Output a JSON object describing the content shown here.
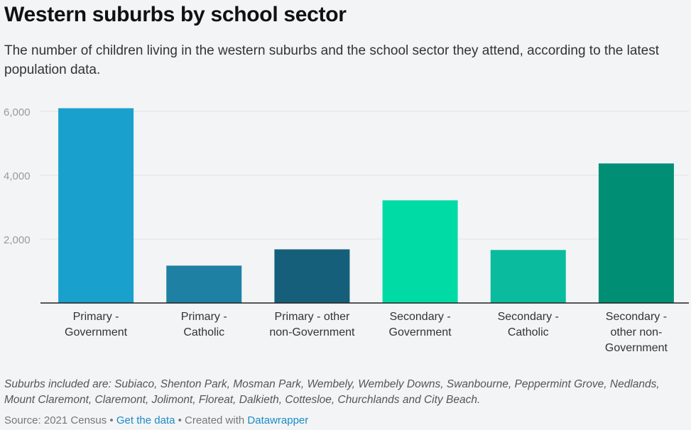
{
  "title": "Western suburbs by school sector",
  "subtitle": "The number of children living in the western suburbs and the school sector they attend, according to the latest population data.",
  "notes": "Suburbs included are: Subiaco, Shenton Park, Mosman Park, Wembely, Wembely Downs, Swanbourne, Peppermint Grove, Nedlands, Mount Claremont, Claremont, Jolimont, Floreat, Dalkieth, Cottesloe, Churchlands and City Beach.",
  "footer": {
    "source": "Source: 2021 Census",
    "sep1": " • ",
    "get_data": "Get the data",
    "sep2": " • Created with ",
    "datawrapper": "Datawrapper"
  },
  "chart_data": {
    "type": "bar",
    "title": "Western suburbs by school sector",
    "xlabel": "",
    "ylabel": "",
    "ylim": [
      0,
      6000
    ],
    "yticks": [
      2000,
      4000,
      6000
    ],
    "ytick_labels": [
      "2,000",
      "4,000",
      "6,000"
    ],
    "grid": true,
    "categories": [
      [
        "Primary -",
        "Government"
      ],
      [
        "Primary -",
        "Catholic"
      ],
      [
        "Primary - other",
        "non-Government"
      ],
      [
        "Secondary -",
        "Government"
      ],
      [
        "Secondary -",
        "Catholic"
      ],
      [
        "Secondary -",
        "other non-",
        "Government"
      ]
    ],
    "values": [
      6100,
      1170,
      1680,
      3215,
      1660,
      4370
    ],
    "colors": [
      "#19a0cd",
      "#1e81a3",
      "#165f7a",
      "#00dba6",
      "#0abb9e",
      "#008f74"
    ]
  }
}
